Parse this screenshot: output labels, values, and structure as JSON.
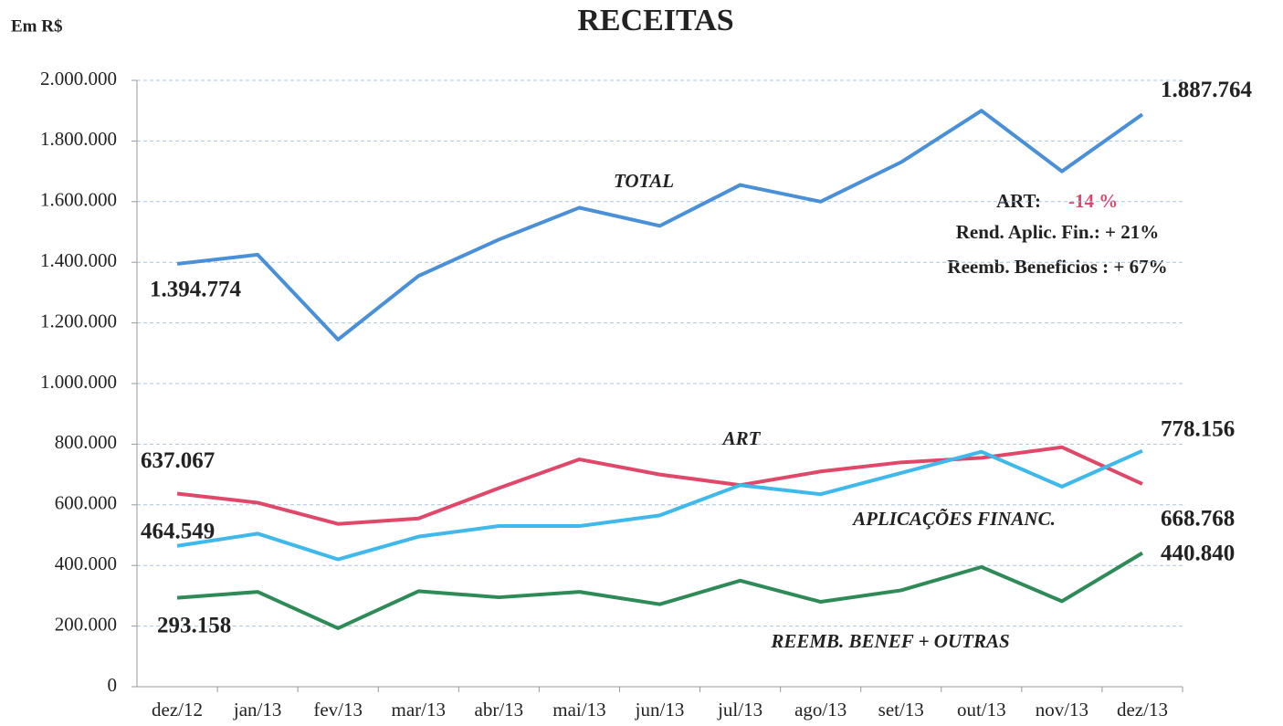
{
  "chart_data": {
    "type": "line",
    "title": "RECEITAS",
    "unit_label": "Em R$",
    "categories": [
      "dez/12",
      "jan/13",
      "fev/13",
      "mar/13",
      "abr/13",
      "mai/13",
      "jun/13",
      "jul/13",
      "ago/13",
      "set/13",
      "out/13",
      "nov/13",
      "dez/13"
    ],
    "ylim": [
      0,
      2000000
    ],
    "yticks": [
      0,
      {
        "value": 200000,
        "label": "200.000"
      },
      {
        "value": 400000,
        "label": "400.000"
      },
      {
        "value": 600000,
        "label": "600.000"
      },
      {
        "value": 800000,
        "label": "800.000"
      },
      {
        "value": 1000000,
        "label": "1.000.000"
      },
      {
        "value": 1200000,
        "label": "1.200.000"
      },
      {
        "value": 1400000,
        "label": "1.400.000"
      },
      {
        "value": 1600000,
        "label": "1.600.000"
      },
      {
        "value": 1800000,
        "label": "1.800.000"
      },
      {
        "value": 2000000,
        "label": "2.000.000"
      }
    ],
    "grid": true,
    "series": [
      {
        "name": "TOTAL",
        "color": "#4a90d9",
        "values": [
          1394774,
          1425000,
          1145000,
          1355000,
          1475000,
          1580000,
          1520000,
          1655000,
          1600000,
          1730000,
          1900000,
          1700000,
          1887764
        ],
        "value_labels": [
          "1.394.774",
          null,
          null,
          null,
          null,
          null,
          null,
          null,
          null,
          null,
          null,
          null,
          "1.887.764"
        ]
      },
      {
        "name": "ART",
        "color": "#e0486a",
        "values": [
          637067,
          607000,
          537000,
          555000,
          655000,
          750000,
          700000,
          665000,
          710000,
          740000,
          755000,
          790000,
          668768
        ],
        "value_labels": [
          "637.067",
          null,
          null,
          null,
          null,
          null,
          null,
          null,
          null,
          null,
          null,
          null,
          "668.768"
        ]
      },
      {
        "name": "APLICAÇÕES FINANC.",
        "color": "#3fb8ec",
        "values": [
          464549,
          505000,
          420000,
          495000,
          530000,
          530000,
          565000,
          665000,
          635000,
          705000,
          775000,
          660000,
          778156
        ],
        "value_labels": [
          "464.549",
          null,
          null,
          null,
          null,
          null,
          null,
          null,
          null,
          null,
          null,
          null,
          "778.156"
        ]
      },
      {
        "name": "REEMB. BENEF + OUTRAS",
        "color": "#2e8b57",
        "values": [
          293158,
          313000,
          193000,
          315000,
          295000,
          313000,
          272000,
          350000,
          280000,
          318000,
          395000,
          282000,
          440840
        ],
        "value_labels": [
          "293.158",
          null,
          null,
          null,
          null,
          null,
          null,
          null,
          null,
          null,
          null,
          null,
          "440.840"
        ]
      }
    ],
    "annotation": {
      "art_label": "ART:",
      "art_value": "-14 %",
      "line2": "Rend. Aplic. Fin.: + 21%",
      "line3": "Reemb. Beneficios : + 67%"
    }
  }
}
